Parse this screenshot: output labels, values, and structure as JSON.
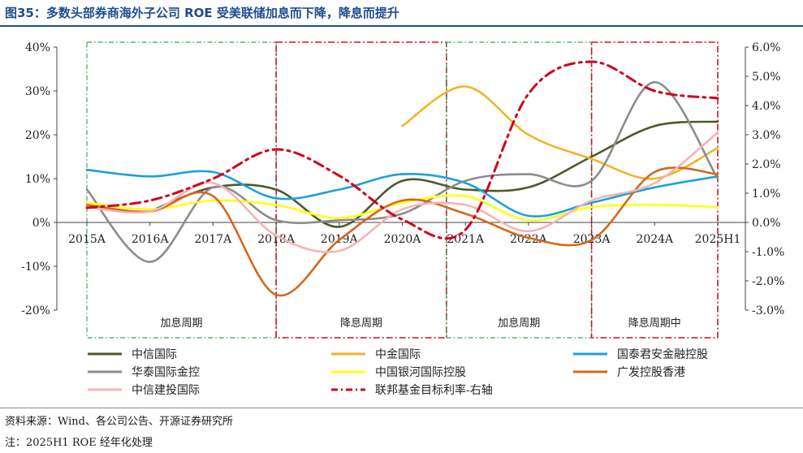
{
  "title": "图35：多数头部券商海外子公司 ROE 受美联储加息而下降，降息而提升",
  "source_note": "资料来源：Wind、各公司公告、开源证券研究所",
  "footnote": "注：2025H1 ROE 经年化处理",
  "chart_data": {
    "type": "line",
    "categories": [
      "2015A",
      "2016A",
      "2017A",
      "2018A",
      "2019A",
      "2020A",
      "2021A",
      "2022A",
      "2023A",
      "2024A",
      "2025H1"
    ],
    "y_left": {
      "range": [
        -20,
        40
      ],
      "ticks": [
        "40%",
        "30%",
        "20%",
        "10%",
        "0%",
        "-10%",
        "-20%"
      ]
    },
    "y_right": {
      "range": [
        -3.0,
        6.0
      ],
      "ticks": [
        "6.0%",
        "5.0%",
        "4.0%",
        "3.0%",
        "2.0%",
        "1.0%",
        "0.0%",
        "-1.0%",
        "-2.0%",
        "-3.0%"
      ]
    },
    "periods": [
      {
        "label": "加息周期",
        "from": 0,
        "to": 3,
        "color": "#2ea856"
      },
      {
        "label": "降息周期",
        "from": 3,
        "to": 5.7,
        "color": "#c8102e"
      },
      {
        "label": "加息周期",
        "from": 5.7,
        "to": 8,
        "color": "#2ea856"
      },
      {
        "label": "降息周期中",
        "from": 8,
        "to": 10,
        "color": "#c8102e"
      }
    ],
    "series": [
      {
        "name": "中信国际",
        "color": "#4a5a2a",
        "axis": "left",
        "values": [
          null,
          2.5,
          8,
          7.5,
          -1,
          9.5,
          7.5,
          8,
          15,
          22,
          23
        ]
      },
      {
        "name": "中金国际",
        "color": "#f0b428",
        "axis": "left",
        "values": [
          null,
          null,
          null,
          null,
          null,
          22,
          31,
          20,
          14.5,
          10,
          17
        ]
      },
      {
        "name": "国泰君安金融控股",
        "color": "#1ea0d8",
        "axis": "left",
        "values": [
          12,
          10.5,
          11.5,
          5.5,
          7.5,
          11,
          9,
          1.5,
          4.5,
          8,
          10.5
        ]
      },
      {
        "name": "华泰国际金控",
        "color": "#8c8c8c",
        "axis": "left",
        "values": [
          7.5,
          -9,
          8,
          0.5,
          0.5,
          2,
          9.5,
          11,
          9.5,
          32,
          10
        ]
      },
      {
        "name": "中国银河国际控股",
        "color": "#ffff14",
        "axis": "left",
        "values": [
          4.5,
          3,
          5,
          4,
          1,
          4.5,
          6,
          0.5,
          3.5,
          4,
          3.5
        ]
      },
      {
        "name": "广发控股香港",
        "color": "#d2691e",
        "axis": "left",
        "values": [
          4,
          2.5,
          6,
          -16.5,
          -4,
          5,
          2,
          -3.5,
          -4,
          11.5,
          11
        ]
      },
      {
        "name": "中信建投国际",
        "color": "#f4b4b4",
        "axis": "left",
        "values": [
          3.5,
          2.5,
          9,
          -3,
          -6.5,
          3,
          4,
          -2,
          5,
          9,
          20.5
        ]
      },
      {
        "name": "联邦基金目标利率-右轴",
        "color": "#d0021b",
        "axis": "right",
        "dashed": true,
        "values": [
          0.5,
          0.75,
          1.5,
          2.5,
          1.6,
          0.1,
          -0.25,
          4.4,
          5.5,
          4.5,
          4.25
        ]
      }
    ]
  }
}
